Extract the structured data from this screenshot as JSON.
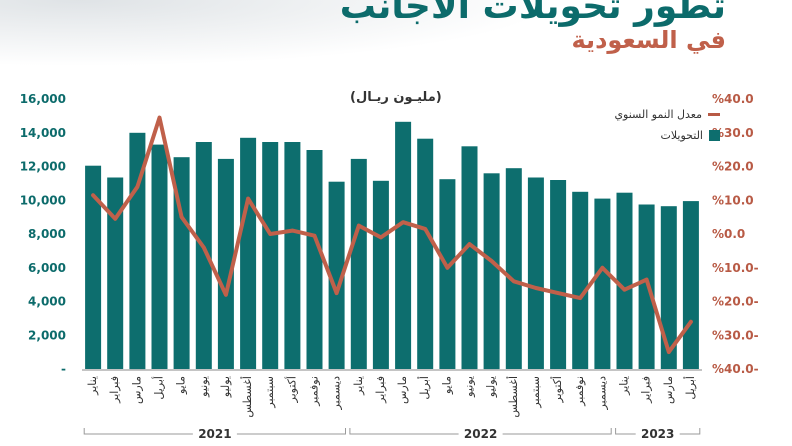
{
  "title": {
    "line1": "تطور تحويلات الأجانب",
    "line2": "في السعودية"
  },
  "unit_label": "(مليـون ريـال)",
  "legend": {
    "line_label": "معدل النمو السنوي",
    "bar_label": "التحويلات"
  },
  "colors": {
    "bar": "#0d6e6e",
    "line": "#c0604a",
    "left_axis": "#0c6b6b",
    "right_axis": "#b85a45"
  },
  "chart_data": {
    "type": "bar",
    "categories": [
      "يناير",
      "فبراير",
      "مارس",
      "أبريل",
      "مايو",
      "يونيو",
      "يوليو",
      "أغسطس",
      "سبتمبر",
      "أكتوبر",
      "نوفمبر",
      "ديسمبر",
      "يناير",
      "فبراير",
      "مارس",
      "أبريل",
      "مايو",
      "يونيو",
      "يوليو",
      "أغسطس",
      "سبتمبر",
      "أكتوبر",
      "نوفمبر",
      "ديسمبر",
      "يناير",
      "فبراير",
      "مارس",
      "أبريل"
    ],
    "year_groups": [
      {
        "label": "2021",
        "start": 0,
        "end": 11
      },
      {
        "label": "2022",
        "start": 12,
        "end": 23
      },
      {
        "label": "2023",
        "start": 24,
        "end": 27
      }
    ],
    "series": [
      {
        "name": "التحويلات",
        "axis": "left",
        "type": "bar",
        "values": [
          12050,
          11350,
          14000,
          13300,
          12550,
          13450,
          12450,
          13700,
          13450,
          13450,
          12980,
          11100,
          12450,
          11150,
          14650,
          13650,
          11250,
          13200,
          11600,
          11900,
          11350,
          11200,
          10500,
          10100,
          10450,
          9750,
          9650,
          9950
        ]
      },
      {
        "name": "معدل النمو السنوي",
        "axis": "right",
        "type": "line",
        "values": [
          11.5,
          4.5,
          14,
          34.5,
          5,
          -4,
          -18,
          10.5,
          0,
          1,
          -0.5,
          -17.5,
          2.5,
          -1,
          3.5,
          1.5,
          -10,
          -3,
          -8,
          -14,
          -16,
          -17.5,
          -19,
          -10,
          -16.5,
          -13.5,
          -35,
          -26
        ]
      }
    ],
    "left_axis": {
      "ylim": [
        0,
        16000
      ],
      "ticks": [
        0,
        2000,
        4000,
        6000,
        8000,
        10000,
        12000,
        14000,
        16000
      ],
      "tick_labels": [
        "-",
        "2,000",
        "4,000",
        "6,000",
        "8,000",
        "10,000",
        "12,000",
        "14,000",
        "16,000"
      ]
    },
    "right_axis": {
      "ylim": [
        -40,
        40
      ],
      "ticks": [
        40,
        30,
        20,
        10,
        0,
        -10,
        -20,
        -30,
        -40
      ],
      "tick_labels": [
        "%40.0",
        "%30.0",
        "%20.0",
        "%10.0",
        "%0.0",
        "%10.0-",
        "%20.0-",
        "%30.0-",
        "%40.0-"
      ]
    },
    "grid": false,
    "legend_position": "top-right"
  }
}
